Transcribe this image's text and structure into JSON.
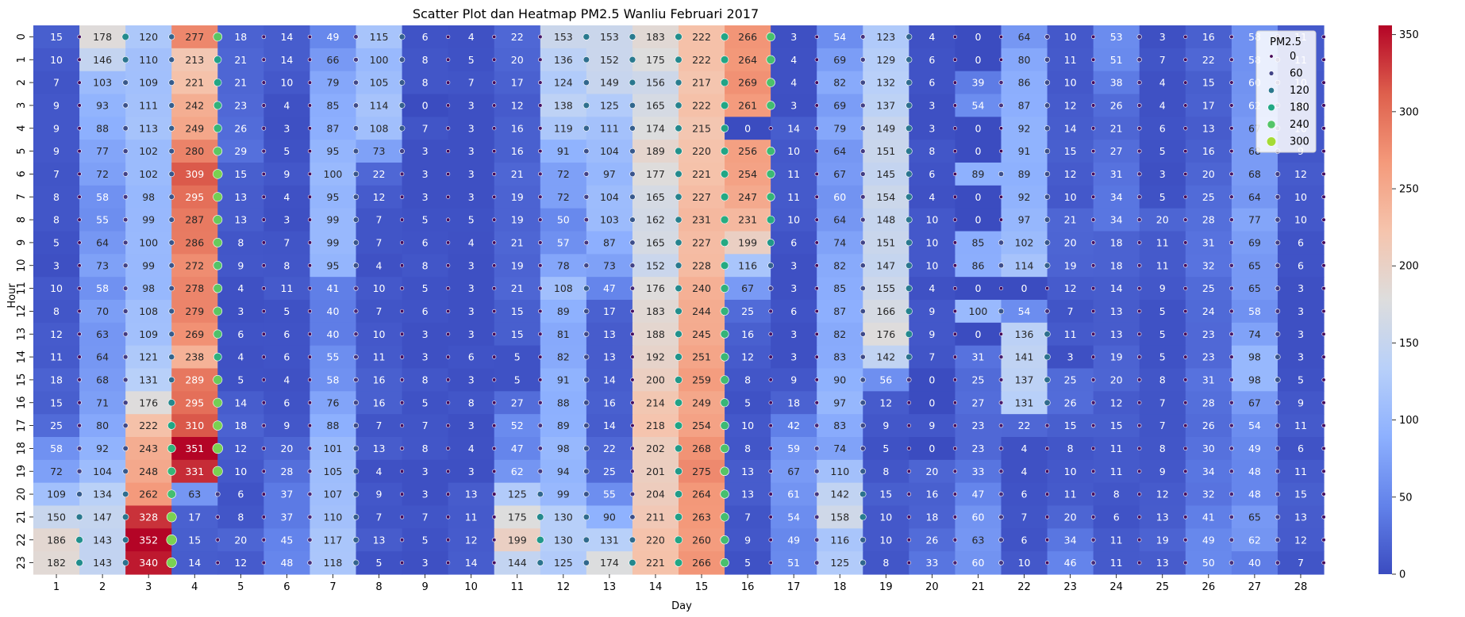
{
  "chart_data": {
    "type": "heatmap",
    "title": "Scatter Plot dan Heatmap PM2.5 Wanliu Februari 2017",
    "xlabel": "Day",
    "ylabel": "Hour",
    "x_categories": [
      "1",
      "2",
      "3",
      "4",
      "5",
      "6",
      "7",
      "8",
      "9",
      "10",
      "11",
      "12",
      "13",
      "14",
      "15",
      "16",
      "17",
      "18",
      "19",
      "20",
      "21",
      "22",
      "23",
      "24",
      "25",
      "26",
      "27",
      "28"
    ],
    "y_categories": [
      "0",
      "1",
      "2",
      "3",
      "4",
      "5",
      "6",
      "7",
      "8",
      "9",
      "10",
      "11",
      "12",
      "13",
      "14",
      "15",
      "16",
      "17",
      "18",
      "19",
      "20",
      "21",
      "22",
      "23"
    ],
    "values": [
      [
        15,
        178,
        120,
        277,
        18,
        14,
        49,
        115,
        6,
        4,
        22,
        153,
        153,
        183,
        222,
        266,
        3,
        54,
        123,
        4,
        0,
        64,
        10,
        53,
        3,
        16,
        58,
        11
      ],
      [
        10,
        146,
        110,
        213,
        21,
        14,
        66,
        100,
        8,
        5,
        20,
        136,
        152,
        175,
        222,
        264,
        4,
        69,
        129,
        6,
        0,
        80,
        11,
        51,
        7,
        22,
        58,
        11
      ],
      [
        7,
        103,
        109,
        221,
        21,
        10,
        79,
        105,
        8,
        7,
        17,
        124,
        149,
        156,
        217,
        269,
        4,
        82,
        132,
        6,
        39,
        86,
        10,
        38,
        4,
        15,
        60,
        10
      ],
      [
        9,
        93,
        111,
        242,
        23,
        4,
        85,
        114,
        0,
        3,
        12,
        138,
        125,
        165,
        222,
        261,
        3,
        69,
        137,
        3,
        54,
        87,
        12,
        26,
        4,
        17,
        62,
        10
      ],
      [
        9,
        88,
        113,
        249,
        26,
        3,
        87,
        108,
        7,
        3,
        16,
        119,
        111,
        174,
        215,
        0,
        14,
        79,
        149,
        3,
        0,
        92,
        14,
        21,
        6,
        13,
        67,
        10
      ],
      [
        9,
        77,
        102,
        280,
        29,
        5,
        95,
        73,
        3,
        3,
        16,
        91,
        104,
        189,
        220,
        256,
        10,
        64,
        151,
        8,
        0,
        91,
        15,
        27,
        5,
        16,
        68,
        9
      ],
      [
        7,
        72,
        102,
        309,
        15,
        9,
        100,
        22,
        3,
        3,
        21,
        72,
        97,
        177,
        221,
        254,
        11,
        67,
        145,
        6,
        89,
        89,
        12,
        31,
        3,
        20,
        68,
        12
      ],
      [
        8,
        58,
        98,
        295,
        13,
        4,
        95,
        12,
        3,
        3,
        19,
        72,
        104,
        165,
        227,
        247,
        11,
        60,
        154,
        4,
        0,
        92,
        10,
        34,
        5,
        25,
        64,
        10
      ],
      [
        8,
        55,
        99,
        287,
        13,
        3,
        99,
        7,
        5,
        5,
        19,
        50,
        103,
        162,
        231,
        231,
        10,
        64,
        148,
        10,
        0,
        97,
        21,
        34,
        20,
        28,
        77,
        10
      ],
      [
        5,
        64,
        100,
        286,
        8,
        7,
        99,
        7,
        6,
        4,
        21,
        57,
        87,
        165,
        227,
        199,
        6,
        74,
        151,
        10,
        85,
        102,
        20,
        18,
        11,
        31,
        69,
        6
      ],
      [
        3,
        73,
        99,
        272,
        9,
        8,
        95,
        4,
        8,
        3,
        19,
        78,
        73,
        152,
        228,
        116,
        3,
        82,
        147,
        10,
        86,
        114,
        19,
        18,
        11,
        32,
        65,
        6
      ],
      [
        10,
        58,
        98,
        278,
        4,
        11,
        41,
        10,
        5,
        3,
        21,
        108,
        47,
        176,
        240,
        67,
        3,
        85,
        155,
        4,
        0,
        0,
        12,
        14,
        9,
        25,
        65,
        3
      ],
      [
        8,
        70,
        108,
        279,
        3,
        5,
        40,
        7,
        6,
        3,
        15,
        89,
        17,
        183,
        244,
        25,
        6,
        87,
        166,
        9,
        100,
        54,
        7,
        13,
        5,
        24,
        58,
        3
      ],
      [
        12,
        63,
        109,
        269,
        6,
        6,
        40,
        10,
        3,
        3,
        15,
        81,
        13,
        188,
        245,
        16,
        3,
        82,
        176,
        9,
        0,
        136,
        11,
        13,
        5,
        23,
        74,
        3
      ],
      [
        11,
        64,
        121,
        238,
        4,
        6,
        55,
        11,
        3,
        6,
        5,
        82,
        13,
        192,
        251,
        12,
        3,
        83,
        142,
        7,
        31,
        141,
        3,
        19,
        5,
        23,
        98,
        3
      ],
      [
        18,
        68,
        131,
        289,
        5,
        4,
        58,
        16,
        8,
        3,
        5,
        91,
        14,
        200,
        259,
        8,
        9,
        90,
        56,
        0,
        25,
        137,
        25,
        20,
        8,
        31,
        98,
        5
      ],
      [
        15,
        71,
        176,
        295,
        14,
        6,
        76,
        16,
        5,
        8,
        27,
        88,
        16,
        214,
        249,
        5,
        18,
        97,
        12,
        0,
        27,
        131,
        26,
        12,
        7,
        28,
        67,
        9
      ],
      [
        25,
        80,
        222,
        310,
        18,
        9,
        88,
        7,
        7,
        3,
        52,
        89,
        14,
        218,
        254,
        10,
        42,
        83,
        9,
        9,
        23,
        22,
        15,
        15,
        7,
        26,
        54,
        11
      ],
      [
        58,
        92,
        243,
        351,
        12,
        20,
        101,
        13,
        8,
        4,
        47,
        98,
        22,
        202,
        268,
        8,
        59,
        74,
        5,
        0,
        23,
        4,
        8,
        11,
        8,
        30,
        49,
        6
      ],
      [
        72,
        104,
        248,
        331,
        10,
        28,
        105,
        4,
        3,
        3,
        62,
        94,
        25,
        201,
        275,
        13,
        67,
        110,
        8,
        20,
        33,
        4,
        10,
        11,
        9,
        34,
        48,
        11
      ],
      [
        109,
        134,
        262,
        63,
        6,
        37,
        107,
        9,
        3,
        13,
        125,
        99,
        55,
        204,
        264,
        13,
        61,
        142,
        15,
        16,
        47,
        6,
        11,
        8,
        12,
        32,
        48,
        15
      ],
      [
        150,
        147,
        328,
        17,
        8,
        37,
        110,
        7,
        7,
        11,
        175,
        130,
        90,
        211,
        263,
        7,
        54,
        158,
        10,
        18,
        60,
        7,
        20,
        6,
        13,
        41,
        65,
        13
      ],
      [
        186,
        143,
        352,
        15,
        20,
        45,
        117,
        13,
        5,
        12,
        199,
        130,
        131,
        220,
        260,
        9,
        49,
        116,
        10,
        26,
        63,
        6,
        34,
        11,
        19,
        49,
        62,
        12
      ],
      [
        182,
        143,
        340,
        14,
        12,
        48,
        118,
        5,
        3,
        14,
        144,
        125,
        174,
        221,
        266,
        5,
        51,
        125,
        8,
        33,
        60,
        10,
        46,
        11,
        13,
        50,
        40,
        7
      ]
    ],
    "colormap": "coolwarm",
    "colorbar": {
      "range": [
        0,
        350
      ],
      "ticks": [
        0,
        50,
        100,
        150,
        200,
        250,
        300,
        350
      ]
    },
    "scatter_overlay": {
      "legend_title": "PM2.5",
      "legend_entries": [
        "0",
        "60",
        "120",
        "180",
        "240",
        "300"
      ],
      "legend_colors": [
        "#440154",
        "#414487",
        "#2a788e",
        "#22a884",
        "#54c568",
        "#a5db36"
      ],
      "legend_placement": "top-right",
      "offset": "right edge of cells"
    },
    "grid": false
  }
}
